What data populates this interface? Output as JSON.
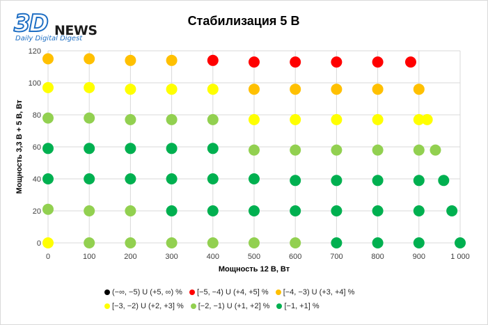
{
  "logo": {
    "main": "3D",
    "news": "NEWS",
    "tagline": "Daily Digital Digest"
  },
  "chart_data": {
    "type": "scatter",
    "title": "Стабилизация 5 В",
    "xlabel": "Мощность  12 В, Вт",
    "ylabel": "Мощность  3,3 В + 5 В, Вт",
    "xlim": [
      0,
      1000
    ],
    "ylim": [
      0,
      120
    ],
    "x_ticks": [
      "0",
      "100",
      "200",
      "300",
      "400",
      "500",
      "600",
      "700",
      "800",
      "900",
      "1 000"
    ],
    "y_ticks": [
      "0",
      "20",
      "40",
      "60",
      "80",
      "100",
      "120"
    ],
    "grid": true,
    "legend_position": "bottom",
    "categories": [
      {
        "key": "c0",
        "label": "(−∞, −5) U (+5, ∞) %",
        "color": "#000000"
      },
      {
        "key": "c1",
        "label": "[−5, −4) U (+4, +5] %",
        "color": "#ff0000"
      },
      {
        "key": "c2",
        "label": "[−4, −3) U (+3, +4] %",
        "color": "#ffc000"
      },
      {
        "key": "c3",
        "label": "[−3, −2) U (+2, +3] %",
        "color": "#ffff00"
      },
      {
        "key": "c4",
        "label": "[−2, −1) U (+1, +2] %",
        "color": "#92d050"
      },
      {
        "key": "c5",
        "label": "[−1, +1] %",
        "color": "#00b050"
      }
    ],
    "points": [
      {
        "x": 0,
        "y": 115,
        "c": "c2"
      },
      {
        "x": 100,
        "y": 115,
        "c": "c2"
      },
      {
        "x": 200,
        "y": 114,
        "c": "c2"
      },
      {
        "x": 300,
        "y": 114,
        "c": "c2"
      },
      {
        "x": 400,
        "y": 114,
        "c": "c1"
      },
      {
        "x": 500,
        "y": 113,
        "c": "c1"
      },
      {
        "x": 600,
        "y": 113,
        "c": "c1"
      },
      {
        "x": 700,
        "y": 113,
        "c": "c1"
      },
      {
        "x": 800,
        "y": 113,
        "c": "c1"
      },
      {
        "x": 880,
        "y": 113,
        "c": "c1"
      },
      {
        "x": 0,
        "y": 97,
        "c": "c3"
      },
      {
        "x": 100,
        "y": 97,
        "c": "c3"
      },
      {
        "x": 200,
        "y": 96,
        "c": "c3"
      },
      {
        "x": 300,
        "y": 96,
        "c": "c3"
      },
      {
        "x": 400,
        "y": 96,
        "c": "c3"
      },
      {
        "x": 500,
        "y": 96,
        "c": "c2"
      },
      {
        "x": 600,
        "y": 96,
        "c": "c2"
      },
      {
        "x": 700,
        "y": 96,
        "c": "c2"
      },
      {
        "x": 800,
        "y": 96,
        "c": "c2"
      },
      {
        "x": 900,
        "y": 96,
        "c": "c2"
      },
      {
        "x": 0,
        "y": 78,
        "c": "c4"
      },
      {
        "x": 100,
        "y": 78,
        "c": "c4"
      },
      {
        "x": 200,
        "y": 77,
        "c": "c4"
      },
      {
        "x": 300,
        "y": 77,
        "c": "c4"
      },
      {
        "x": 400,
        "y": 77,
        "c": "c4"
      },
      {
        "x": 500,
        "y": 77,
        "c": "c3"
      },
      {
        "x": 600,
        "y": 77,
        "c": "c3"
      },
      {
        "x": 700,
        "y": 77,
        "c": "c3"
      },
      {
        "x": 800,
        "y": 77,
        "c": "c3"
      },
      {
        "x": 900,
        "y": 77,
        "c": "c3"
      },
      {
        "x": 920,
        "y": 77,
        "c": "c3"
      },
      {
        "x": 0,
        "y": 59,
        "c": "c5"
      },
      {
        "x": 100,
        "y": 59,
        "c": "c5"
      },
      {
        "x": 200,
        "y": 59,
        "c": "c5"
      },
      {
        "x": 300,
        "y": 59,
        "c": "c5"
      },
      {
        "x": 400,
        "y": 59,
        "c": "c5"
      },
      {
        "x": 500,
        "y": 58,
        "c": "c4"
      },
      {
        "x": 600,
        "y": 58,
        "c": "c4"
      },
      {
        "x": 700,
        "y": 58,
        "c": "c4"
      },
      {
        "x": 800,
        "y": 58,
        "c": "c4"
      },
      {
        "x": 900,
        "y": 58,
        "c": "c4"
      },
      {
        "x": 940,
        "y": 58,
        "c": "c4"
      },
      {
        "x": 0,
        "y": 40,
        "c": "c5"
      },
      {
        "x": 100,
        "y": 40,
        "c": "c5"
      },
      {
        "x": 200,
        "y": 40,
        "c": "c5"
      },
      {
        "x": 300,
        "y": 40,
        "c": "c5"
      },
      {
        "x": 400,
        "y": 40,
        "c": "c5"
      },
      {
        "x": 500,
        "y": 40,
        "c": "c5"
      },
      {
        "x": 600,
        "y": 39,
        "c": "c5"
      },
      {
        "x": 700,
        "y": 39,
        "c": "c5"
      },
      {
        "x": 800,
        "y": 39,
        "c": "c5"
      },
      {
        "x": 900,
        "y": 39,
        "c": "c5"
      },
      {
        "x": 960,
        "y": 39,
        "c": "c5"
      },
      {
        "x": 0,
        "y": 21,
        "c": "c4"
      },
      {
        "x": 100,
        "y": 20,
        "c": "c4"
      },
      {
        "x": 200,
        "y": 20,
        "c": "c4"
      },
      {
        "x": 300,
        "y": 20,
        "c": "c5"
      },
      {
        "x": 400,
        "y": 20,
        "c": "c5"
      },
      {
        "x": 500,
        "y": 20,
        "c": "c5"
      },
      {
        "x": 600,
        "y": 20,
        "c": "c5"
      },
      {
        "x": 700,
        "y": 20,
        "c": "c5"
      },
      {
        "x": 800,
        "y": 20,
        "c": "c5"
      },
      {
        "x": 900,
        "y": 20,
        "c": "c5"
      },
      {
        "x": 980,
        "y": 20,
        "c": "c5"
      },
      {
        "x": 0,
        "y": 0,
        "c": "c3"
      },
      {
        "x": 100,
        "y": 0,
        "c": "c4"
      },
      {
        "x": 200,
        "y": 0,
        "c": "c4"
      },
      {
        "x": 300,
        "y": 0,
        "c": "c4"
      },
      {
        "x": 400,
        "y": 0,
        "c": "c4"
      },
      {
        "x": 500,
        "y": 0,
        "c": "c4"
      },
      {
        "x": 600,
        "y": 0,
        "c": "c4"
      },
      {
        "x": 700,
        "y": 0,
        "c": "c5"
      },
      {
        "x": 800,
        "y": 0,
        "c": "c5"
      },
      {
        "x": 900,
        "y": 0,
        "c": "c5"
      },
      {
        "x": 1000,
        "y": 0,
        "c": "c5"
      }
    ]
  }
}
